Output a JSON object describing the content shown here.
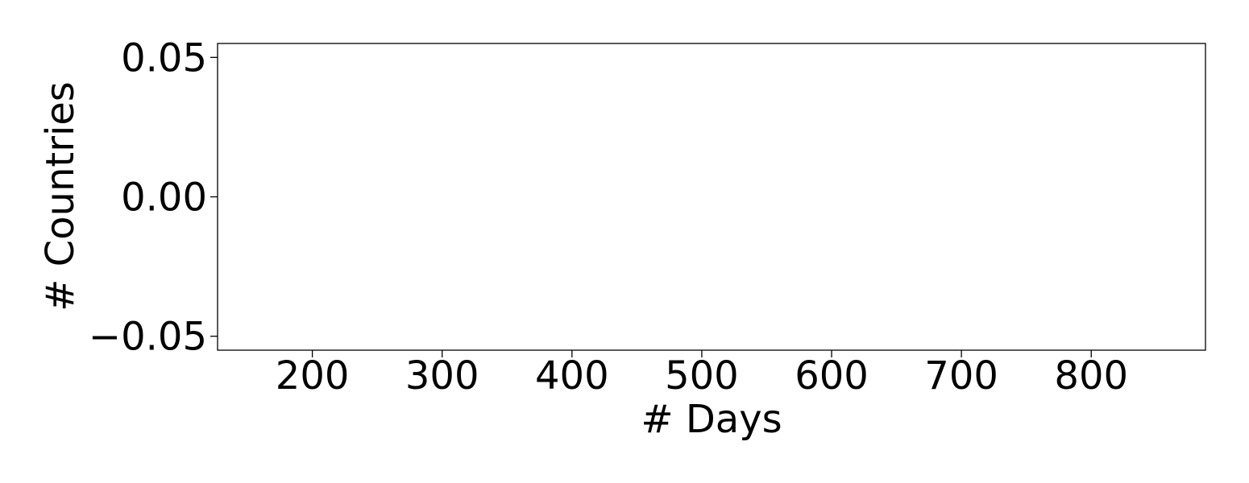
{
  "chart_data": {
    "type": "line",
    "title": "",
    "xlabel": "# Days",
    "ylabel": "# Countries",
    "xlim": [
      127,
      888
    ],
    "ylim": [
      -0.055,
      0.055
    ],
    "x_ticks": [
      200,
      300,
      400,
      500,
      600,
      700,
      800
    ],
    "x_tick_labels": [
      "200",
      "300",
      "400",
      "500",
      "600",
      "700",
      "800"
    ],
    "y_ticks": [
      0.05,
      0.0,
      -0.05
    ],
    "y_tick_labels": [
      "0.05",
      "0.00",
      "−0.05"
    ],
    "series": [],
    "grid": false,
    "legend": "none",
    "colors": {
      "axes": "#000000",
      "background": "#ffffff"
    }
  }
}
